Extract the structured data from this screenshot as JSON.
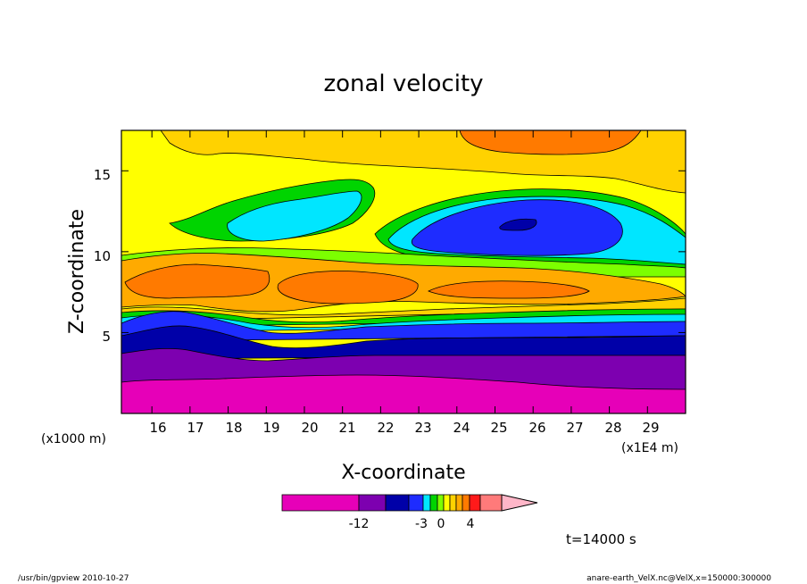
{
  "chart_data": {
    "type": "heatmap",
    "title": "zonal velocity",
    "xlabel": "X-coordinate",
    "ylabel": "Z-coordinate",
    "x_unit": "(x1E4 m)",
    "y_unit": "(x1000 m)",
    "x_range": [
      15.2,
      30.0
    ],
    "y_range": [
      0.0,
      17.5
    ],
    "x_ticks": [
      "16",
      "17",
      "18",
      "19",
      "20",
      "21",
      "22",
      "23",
      "24",
      "25",
      "26",
      "27",
      "28",
      "29"
    ],
    "y_ticks": [
      "5",
      "10",
      "15"
    ],
    "colorbar": {
      "tick_labels": [
        "-12",
        "-3",
        "0",
        "4"
      ],
      "colors": [
        "#e600b8",
        "#7d00b0",
        "#0000a8",
        "#1e2cff",
        "#00e6ff",
        "#00d400",
        "#7cff00",
        "#ffff00",
        "#ffd200",
        "#ffaa00",
        "#ff7a00",
        "#ff1a1a",
        "#ff7a7a",
        "#ffb6c8"
      ]
    },
    "annotations": [
      "t=14000 s"
    ]
  },
  "footer": {
    "left": "/usr/bin/gpview  2010-10-27",
    "right": "anare-earth_VelX.nc@VelX,x=150000:300000"
  },
  "colors": {
    "background": "#ffffff",
    "magenta": "#e600b8",
    "purple": "#7d00b0",
    "navy": "#0000a8",
    "blue": "#1e2cff",
    "cyan": "#00e6ff",
    "green": "#00d400",
    "lime": "#7cff00",
    "yellow": "#ffff00",
    "gold": "#ffd200",
    "light_orange": "#ffaa00",
    "orange": "#ff7a00",
    "red": "#ff1a1a"
  }
}
